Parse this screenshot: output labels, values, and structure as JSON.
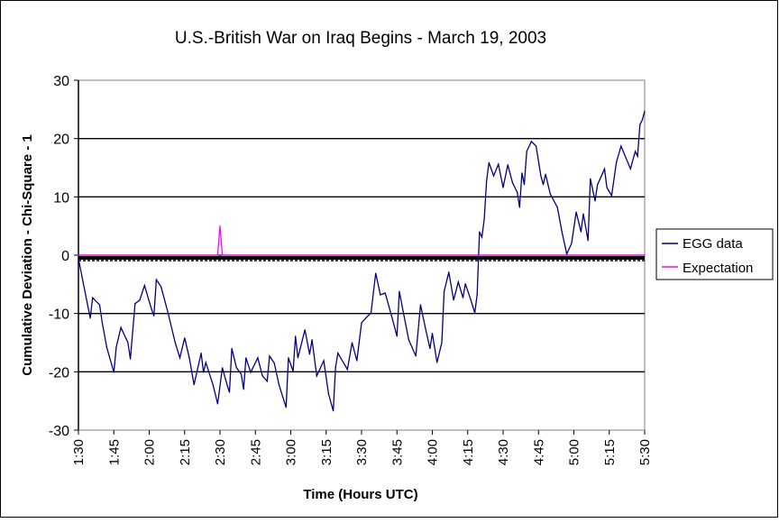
{
  "chart_data": {
    "type": "line",
    "title": "U.S.-British War on Iraq Begins - March 19, 2003",
    "xlabel": "Time (Hours UTC)",
    "ylabel": "Cumulative Deviation - Chi-Square - 1",
    "ylim": [
      -30,
      30
    ],
    "xlim": [
      "1:30",
      "5:30"
    ],
    "yticks": [
      "30",
      "20",
      "10",
      "0",
      "-10",
      "-20",
      "-30"
    ],
    "xticks": [
      "1:30",
      "1:45",
      "2:00",
      "2:15",
      "2:30",
      "2:45",
      "3:00",
      "3:15",
      "3:30",
      "3:45",
      "4:00",
      "4:15",
      "4:30",
      "4:45",
      "5:00",
      "5:15",
      "5:30"
    ],
    "grid": true,
    "legend_position": "right",
    "series": [
      {
        "name": "EGG data",
        "color": "#000080",
        "points": [
          [
            "1:30",
            -0.6
          ],
          [
            "1:33",
            -6.7
          ],
          [
            "1:35",
            -10.8
          ],
          [
            "1:36",
            -7.3
          ],
          [
            "1:39",
            -8.5
          ],
          [
            "1:40",
            -11.4
          ],
          [
            "1:42",
            -15.8
          ],
          [
            "1:45",
            -20.1
          ],
          [
            "1:46",
            -15.8
          ],
          [
            "1:48",
            -12.4
          ],
          [
            "1:51",
            -15
          ],
          [
            "1:52",
            -17.8
          ],
          [
            "1:54",
            -8.3
          ],
          [
            "1:56",
            -7.7
          ],
          [
            "1:58",
            -5.2
          ],
          [
            "2:01",
            -9.3
          ],
          [
            "2:02",
            -10.4
          ],
          [
            "2:03",
            -4.2
          ],
          [
            "2:05",
            -5.4
          ],
          [
            "2:08",
            -9.9
          ],
          [
            "2:11",
            -15
          ],
          [
            "2:13",
            -17.6
          ],
          [
            "2:15",
            -14.2
          ],
          [
            "2:17",
            -17.6
          ],
          [
            "2:19",
            -22.2
          ],
          [
            "2:22",
            -16.8
          ],
          [
            "2:23",
            -20.1
          ],
          [
            "2:24",
            -18.4
          ],
          [
            "2:27",
            -22.2
          ],
          [
            "2:29",
            -25.5
          ],
          [
            "2:31",
            -19.3
          ],
          [
            "2:33",
            -22.2
          ],
          [
            "2:34",
            -23.5
          ],
          [
            "2:35",
            -16
          ],
          [
            "2:37",
            -19.3
          ],
          [
            "2:39",
            -20.4
          ],
          [
            "2:40",
            -23
          ],
          [
            "2:41",
            -17.6
          ],
          [
            "2:43",
            -20.1
          ],
          [
            "2:46",
            -17.6
          ],
          [
            "2:48",
            -20.7
          ],
          [
            "2:50",
            -21.6
          ],
          [
            "2:51",
            -17.3
          ],
          [
            "2:53",
            -18.5
          ],
          [
            "2:55",
            -22.2
          ],
          [
            "2:58",
            -26.1
          ],
          [
            "2:59",
            -17.6
          ],
          [
            "3:01",
            -19.9
          ],
          [
            "3:02",
            -13.9
          ],
          [
            "3:03",
            -17.6
          ],
          [
            "3:06",
            -12.8
          ],
          [
            "3:08",
            -17
          ],
          [
            "3:09",
            -14.5
          ],
          [
            "3:11",
            -20.7
          ],
          [
            "3:14",
            -18.1
          ],
          [
            "3:16",
            -23.8
          ],
          [
            "3:18",
            -26.7
          ],
          [
            "3:19",
            -19.2
          ],
          [
            "3:20",
            -16.8
          ],
          [
            "3:24",
            -19.6
          ],
          [
            "3:26",
            -15
          ],
          [
            "3:28",
            -18.1
          ],
          [
            "3:30",
            -11.6
          ],
          [
            "3:32",
            -10.7
          ],
          [
            "3:34",
            -9.9
          ],
          [
            "3:36",
            -3.1
          ],
          [
            "3:38",
            -6.8
          ],
          [
            "3:40",
            -6.5
          ],
          [
            "3:43",
            -10.8
          ],
          [
            "3:45",
            -13.9
          ],
          [
            "3:46",
            -6.2
          ],
          [
            "3:48",
            -10.4
          ],
          [
            "3:50",
            -14.5
          ],
          [
            "3:53",
            -17.3
          ],
          [
            "3:55",
            -8.5
          ],
          [
            "3:57",
            -12.4
          ],
          [
            "3:59",
            -16
          ],
          [
            "4:00",
            -13.4
          ],
          [
            "4:02",
            -18.4
          ],
          [
            "4:04",
            -15
          ],
          [
            "4:05",
            -6.2
          ],
          [
            "4:07",
            -2.9
          ],
          [
            "4:09",
            -7.7
          ],
          [
            "4:11",
            -4.6
          ],
          [
            "4:13",
            -7.3
          ],
          [
            "4:14",
            -4.9
          ],
          [
            "4:16",
            -7.3
          ],
          [
            "4:18",
            -9.9
          ],
          [
            "4:19",
            -6.8
          ],
          [
            "4:20",
            4.0
          ],
          [
            "4:21",
            3.1
          ],
          [
            "4:22",
            6.2
          ],
          [
            "4:23",
            12.8
          ],
          [
            "4:24",
            15.9
          ],
          [
            "4:26",
            13.6
          ],
          [
            "4:28",
            15.6
          ],
          [
            "4:30",
            11.6
          ],
          [
            "4:32",
            15.5
          ],
          [
            "4:34",
            12.4
          ],
          [
            "4:36",
            10.8
          ],
          [
            "4:37",
            8.2
          ],
          [
            "4:38",
            14.1
          ],
          [
            "4:39",
            12.1
          ],
          [
            "4:40",
            17.8
          ],
          [
            "4:42",
            19.5
          ],
          [
            "4:44",
            18.7
          ],
          [
            "4:46",
            13.6
          ],
          [
            "4:47",
            12.1
          ],
          [
            "4:48",
            13.9
          ],
          [
            "4:50",
            10.5
          ],
          [
            "4:53",
            8.2
          ],
          [
            "4:55",
            3.9
          ],
          [
            "4:57",
            0.2
          ],
          [
            "4:59",
            2.0
          ],
          [
            "5:01",
            7.4
          ],
          [
            "5:03",
            4.0
          ],
          [
            "5:04",
            7.1
          ],
          [
            "5:06",
            2.5
          ],
          [
            "5:07",
            13.1
          ],
          [
            "5:09",
            9.3
          ],
          [
            "5:10",
            12.1
          ],
          [
            "5:13",
            14.8
          ],
          [
            "5:14",
            11.6
          ],
          [
            "5:16",
            10.2
          ],
          [
            "5:18",
            15.9
          ],
          [
            "5:20",
            18.7
          ],
          [
            "5:24",
            14.8
          ],
          [
            "5:26",
            17.8
          ],
          [
            "5:27",
            17
          ],
          [
            "5:28",
            22.4
          ],
          [
            "5:29",
            23.2
          ],
          [
            "5:30",
            24.7
          ]
        ]
      },
      {
        "name": "Expectation",
        "color": "#ff00ff",
        "points": [
          [
            "1:30",
            0
          ],
          [
            "2:29",
            0
          ],
          [
            "2:30",
            5
          ],
          [
            "2:31",
            0
          ],
          [
            "5:30",
            0
          ]
        ]
      }
    ]
  }
}
